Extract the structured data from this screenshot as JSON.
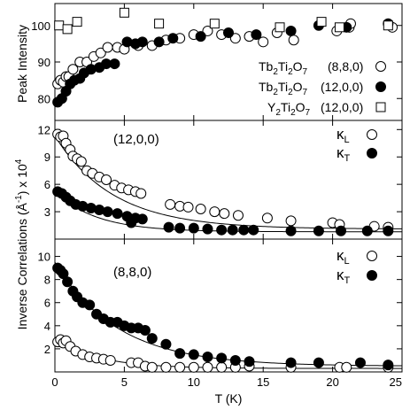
{
  "figure": {
    "x_axis_label": "T (K)",
    "x_ticks": [
      "0",
      "5",
      "10",
      "15",
      "20",
      "25"
    ],
    "shared_ylabel": "Inverse Correlations (Å⁻¹) × 10⁴",
    "shared_ylabel_parts": {
      "prefix": "Inverse Correlations (",
      "unit": "Å",
      "unit_exp": "-1",
      "suffix": ") x 10",
      "power": "4"
    }
  },
  "chart_data": [
    {
      "type": "scatter",
      "panel": "top",
      "ylabel": "Peak Intensity",
      "xlim": [
        0,
        25
      ],
      "ylim": [
        74,
        106
      ],
      "yticks": [
        80,
        90,
        100
      ],
      "legend_entries": [
        {
          "formula": "Tb2Ti2O7",
          "hkl": "(8,8,0)",
          "marker": "open-circle"
        },
        {
          "formula": "Tb2Ti2O7",
          "hkl": "(12,0,0)",
          "marker": "filled-circle"
        },
        {
          "formula": "Y2Ti2O7",
          "hkl": "(12,0,0)",
          "marker": "open-square"
        }
      ],
      "series": [
        {
          "name": "Tb2Ti2O7 (8,8,0)",
          "marker": "open-circle",
          "points": [
            [
              0.2,
              84
            ],
            [
              0.4,
              85
            ],
            [
              0.6,
              84.5
            ],
            [
              0.8,
              86
            ],
            [
              1.0,
              86
            ],
            [
              1.3,
              88
            ],
            [
              1.8,
              90
            ],
            [
              2.3,
              90
            ],
            [
              2.8,
              91.5
            ],
            [
              3.3,
              92.5
            ],
            [
              3.8,
              94
            ],
            [
              4.5,
              94
            ],
            [
              5,
              93.5
            ],
            [
              6,
              94.5
            ],
            [
              7,
              94.5
            ],
            [
              8,
              96
            ],
            [
              9,
              96.5
            ],
            [
              10,
              97.5
            ],
            [
              11,
              98.5
            ],
            [
              12,
              97.5
            ],
            [
              13,
              96.5
            ],
            [
              14,
              97
            ],
            [
              15,
              95.5
            ],
            [
              16,
              98
            ],
            [
              17.2,
              96
            ],
            [
              20.3,
              98.5
            ],
            [
              21.2,
              99.5
            ],
            [
              21.3,
              100.5
            ],
            [
              24.3,
              99.5
            ]
          ]
        },
        {
          "name": "Tb2Ti2O7 (12,0,0)",
          "marker": "filled-circle",
          "points": [
            [
              0.2,
              79
            ],
            [
              0.5,
              80
            ],
            [
              0.8,
              82
            ],
            [
              1.1,
              84
            ],
            [
              1.4,
              85
            ],
            [
              1.8,
              85.5
            ],
            [
              2.1,
              87
            ],
            [
              2.6,
              88
            ],
            [
              3.2,
              88.5
            ],
            [
              3.7,
              89.5
            ],
            [
              4.3,
              89.5
            ],
            [
              5.2,
              95.5
            ],
            [
              5.8,
              95
            ],
            [
              6.3,
              95.5
            ],
            [
              7.5,
              95.5
            ],
            [
              8.5,
              96.5
            ],
            [
              10.5,
              97
            ],
            [
              12.5,
              98
            ],
            [
              14.5,
              97.5
            ],
            [
              17,
              98.5
            ],
            [
              19,
              100
            ],
            [
              21,
              99.5
            ],
            [
              24,
              100.5
            ]
          ]
        },
        {
          "name": "Y2Ti2O7 (12,0,0)",
          "marker": "open-square",
          "points": [
            [
              0.3,
              100
            ],
            [
              0.9,
              99
            ],
            [
              1.6,
              101
            ],
            [
              5.0,
              103.5
            ],
            [
              7.5,
              100.5
            ],
            [
              11.5,
              100.5
            ],
            [
              16.2,
              99.5
            ],
            [
              19.2,
              101
            ],
            [
              20.5,
              99.5
            ],
            [
              24,
              100
            ]
          ]
        }
      ]
    },
    {
      "type": "scatter",
      "panel": "middle",
      "annotation": "(12,0,0)",
      "xlim": [
        0,
        25
      ],
      "ylim": [
        0,
        13
      ],
      "yticks": [
        3,
        6,
        9,
        12
      ],
      "legend_entries": [
        {
          "symbol": "κ",
          "sub": "L",
          "marker": "open-circle"
        },
        {
          "symbol": "κ",
          "sub": "T",
          "marker": "filled-circle"
        }
      ],
      "series": [
        {
          "name": "κL",
          "marker": "open-circle",
          "points": [
            [
              0.2,
              11.5
            ],
            [
              0.4,
              11.2
            ],
            [
              0.6,
              11.3
            ],
            [
              0.8,
              10.5
            ],
            [
              1.1,
              9.8
            ],
            [
              1.3,
              9.1
            ],
            [
              1.6,
              8.8
            ],
            [
              1.9,
              8.5
            ],
            [
              2.3,
              7.5
            ],
            [
              2.7,
              7.2
            ],
            [
              3.2,
              6.8
            ],
            [
              3.7,
              6.5
            ],
            [
              4.3,
              5.9
            ],
            [
              4.8,
              5.6
            ],
            [
              5.3,
              5.4
            ],
            [
              5.8,
              5.2
            ],
            [
              6.2,
              5.0
            ],
            [
              8.3,
              3.8
            ],
            [
              9.0,
              3.6
            ],
            [
              9.6,
              3.5
            ],
            [
              10.5,
              3.3
            ],
            [
              11.5,
              3.0
            ],
            [
              12.2,
              2.8
            ],
            [
              13.2,
              2.6
            ],
            [
              15.3,
              2.3
            ],
            [
              17.0,
              2.0
            ],
            [
              20.0,
              1.8
            ],
            [
              20.5,
              1.6
            ],
            [
              23.0,
              1.4
            ],
            [
              24.0,
              1.3
            ]
          ]
        },
        {
          "name": "κT",
          "marker": "filled-circle",
          "points": [
            [
              0.2,
              5.2
            ],
            [
              0.5,
              5.0
            ],
            [
              0.8,
              4.6
            ],
            [
              1.1,
              4.2
            ],
            [
              1.5,
              3.8
            ],
            [
              2.0,
              3.6
            ],
            [
              2.6,
              3.4
            ],
            [
              3.2,
              3.2
            ],
            [
              3.8,
              3.0
            ],
            [
              4.5,
              2.8
            ],
            [
              5.2,
              2.5
            ],
            [
              5.8,
              2.3
            ],
            [
              6.3,
              2.2
            ],
            [
              5.5,
              1.8
            ],
            [
              8.2,
              1.3
            ],
            [
              9.0,
              1.2
            ],
            [
              10.0,
              1.2
            ],
            [
              11.0,
              1.1
            ],
            [
              12.0,
              1.0
            ],
            [
              12.8,
              1.0
            ],
            [
              13.6,
              1.0
            ],
            [
              14.3,
              1.0
            ],
            [
              17.0,
              0.9
            ],
            [
              19.0,
              0.9
            ],
            [
              20.6,
              0.9
            ],
            [
              22.5,
              0.9
            ],
            [
              24.0,
              0.9
            ]
          ]
        }
      ],
      "fit_curves": [
        {
          "series": "κL",
          "form": "exponential",
          "y0": 1.1,
          "amplitude": 10.2,
          "decay_K": 4.2
        },
        {
          "series": "κT",
          "form": "exponential",
          "y0": 0.8,
          "amplitude": 4.4,
          "decay_K": 3.0
        }
      ]
    },
    {
      "type": "scatter",
      "panel": "bottom",
      "annotation": "(8,8,0)",
      "xlabel": "T (K)",
      "xlim": [
        0,
        25
      ],
      "ylim": [
        0,
        11.5
      ],
      "yticks": [
        2,
        4,
        6,
        8,
        10
      ],
      "xticks": [
        0,
        5,
        10,
        15,
        20,
        25
      ],
      "legend_entries": [
        {
          "symbol": "κ",
          "sub": "L",
          "marker": "open-circle"
        },
        {
          "symbol": "κ",
          "sub": "T",
          "marker": "filled-circle"
        }
      ],
      "series": [
        {
          "name": "κL",
          "marker": "open-circle",
          "points": [
            [
              0.2,
              2.6
            ],
            [
              0.4,
              2.8
            ],
            [
              0.6,
              2.5
            ],
            [
              0.8,
              2.7
            ],
            [
              1.1,
              2.2
            ],
            [
              1.5,
              1.8
            ],
            [
              2.0,
              1.5
            ],
            [
              2.5,
              1.3
            ],
            [
              3.0,
              1.2
            ],
            [
              3.5,
              1.1
            ],
            [
              4.0,
              1.0
            ],
            [
              5.5,
              0.8
            ],
            [
              6.0,
              0.8
            ],
            [
              6.5,
              0.5
            ],
            [
              7.0,
              0.4
            ],
            [
              8.0,
              0.4
            ],
            [
              9.0,
              0.4
            ],
            [
              10.0,
              0.4
            ],
            [
              11.0,
              0.4
            ],
            [
              12.0,
              0.4
            ],
            [
              13.0,
              0.4
            ],
            [
              14.0,
              0.5
            ],
            [
              17.0,
              0.4
            ],
            [
              20.5,
              0.4
            ],
            [
              21.0,
              0.4
            ],
            [
              24.0,
              0.4
            ]
          ]
        },
        {
          "name": "κT",
          "marker": "filled-circle",
          "points": [
            [
              0.2,
              9.0
            ],
            [
              0.4,
              8.8
            ],
            [
              0.6,
              8.5
            ],
            [
              0.9,
              7.8
            ],
            [
              1.3,
              7.0
            ],
            [
              1.6,
              6.5
            ],
            [
              2.0,
              6.0
            ],
            [
              2.5,
              5.8
            ],
            [
              3.0,
              5.0
            ],
            [
              3.5,
              4.6
            ],
            [
              4.0,
              4.3
            ],
            [
              4.5,
              4.3
            ],
            [
              5.0,
              4.0
            ],
            [
              5.5,
              3.8
            ],
            [
              6.0,
              3.8
            ],
            [
              6.5,
              3.6
            ],
            [
              7.0,
              2.9
            ],
            [
              8.0,
              2.4
            ],
            [
              9.0,
              1.6
            ],
            [
              10.0,
              1.5
            ],
            [
              11.0,
              1.3
            ],
            [
              12.0,
              1.2
            ],
            [
              13.0,
              1.0
            ],
            [
              14.0,
              0.9
            ],
            [
              17.0,
              0.8
            ],
            [
              19.0,
              0.8
            ],
            [
              22.0,
              0.8
            ],
            [
              24.0,
              0.6
            ]
          ]
        }
      ],
      "fit_curves": [
        {
          "series": "κT",
          "form": "exponential",
          "y0": 0.5,
          "amplitude": 9.0,
          "decay_K": 4.5
        },
        {
          "series": "κL",
          "form": "exponential",
          "y0": 0.3,
          "amplitude": 2.5,
          "decay_K": 3.2
        }
      ]
    }
  ]
}
